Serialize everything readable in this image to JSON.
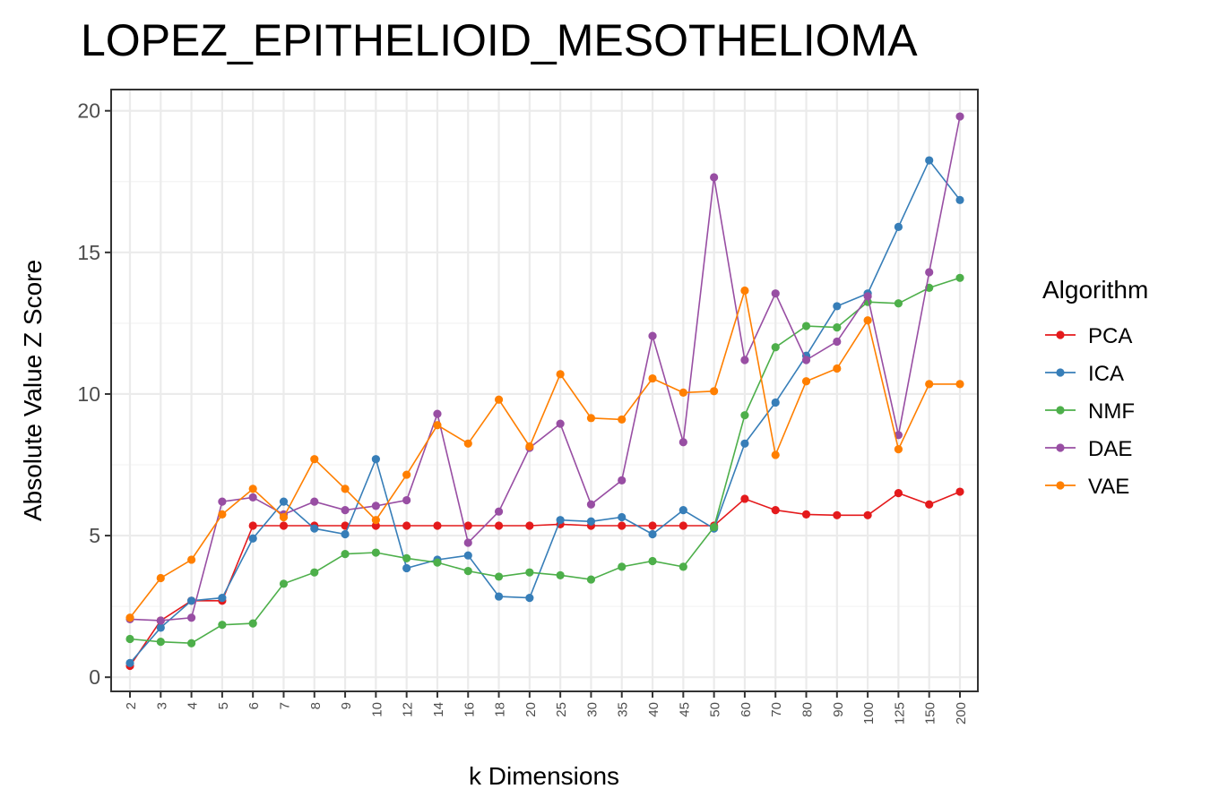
{
  "chart_data": {
    "type": "line",
    "title": "LOPEZ_EPITHELIOID_MESOTHELIOMA",
    "xlabel": "k Dimensions",
    "ylabel": "Absolute Value Z Score",
    "categories": [
      "2",
      "3",
      "4",
      "5",
      "6",
      "7",
      "8",
      "9",
      "10",
      "12",
      "14",
      "16",
      "18",
      "20",
      "25",
      "30",
      "35",
      "40",
      "45",
      "50",
      "60",
      "70",
      "80",
      "90",
      "100",
      "125",
      "150",
      "200"
    ],
    "yticks": [
      "0",
      "5",
      "10",
      "15",
      "20"
    ],
    "ylim": [
      -0.5,
      20.75
    ],
    "legend": {
      "title": "Algorithm",
      "position": "right"
    },
    "grid": true,
    "series": [
      {
        "name": "PCA",
        "color": "#e41a1c",
        "values": [
          0.4,
          2.0,
          2.7,
          2.7,
          5.35,
          5.35,
          5.35,
          5.35,
          5.35,
          5.35,
          5.35,
          5.35,
          5.35,
          5.35,
          5.4,
          5.35,
          5.35,
          5.35,
          5.35,
          5.35,
          6.3,
          5.9,
          5.75,
          5.72,
          5.72,
          6.5,
          6.1,
          6.55
        ]
      },
      {
        "name": "ICA",
        "color": "#377eb8",
        "values": [
          0.5,
          1.75,
          2.7,
          2.8,
          4.9,
          6.2,
          5.25,
          5.05,
          7.7,
          3.85,
          4.15,
          4.3,
          2.85,
          2.8,
          5.55,
          5.5,
          5.65,
          5.05,
          5.9,
          5.25,
          8.25,
          9.7,
          11.35,
          13.1,
          13.55,
          15.9,
          18.25,
          16.85
        ]
      },
      {
        "name": "NMF",
        "color": "#4daf4a",
        "values": [
          1.35,
          1.25,
          1.2,
          1.85,
          1.9,
          3.3,
          3.7,
          4.35,
          4.4,
          4.2,
          4.05,
          3.75,
          3.55,
          3.7,
          3.6,
          3.45,
          3.9,
          4.1,
          3.9,
          5.3,
          9.25,
          11.65,
          12.4,
          12.35,
          13.25,
          13.2,
          13.75,
          14.1
        ]
      },
      {
        "name": "DAE",
        "color": "#984ea3",
        "values": [
          2.05,
          2.0,
          2.1,
          6.2,
          6.35,
          5.75,
          6.2,
          5.9,
          6.05,
          6.25,
          9.3,
          4.75,
          5.85,
          8.1,
          8.95,
          6.1,
          6.95,
          12.05,
          8.3,
          17.65,
          11.2,
          13.55,
          11.2,
          11.85,
          13.45,
          8.55,
          14.3,
          19.8
        ]
      },
      {
        "name": "VAE",
        "color": "#ff7f00",
        "values": [
          2.1,
          3.5,
          4.15,
          5.75,
          6.65,
          5.65,
          7.7,
          6.65,
          5.55,
          7.15,
          8.9,
          8.25,
          9.8,
          8.15,
          10.7,
          9.15,
          9.1,
          10.55,
          10.05,
          10.1,
          13.65,
          7.85,
          10.45,
          10.9,
          12.6,
          8.05,
          10.35,
          10.35
        ]
      }
    ]
  }
}
